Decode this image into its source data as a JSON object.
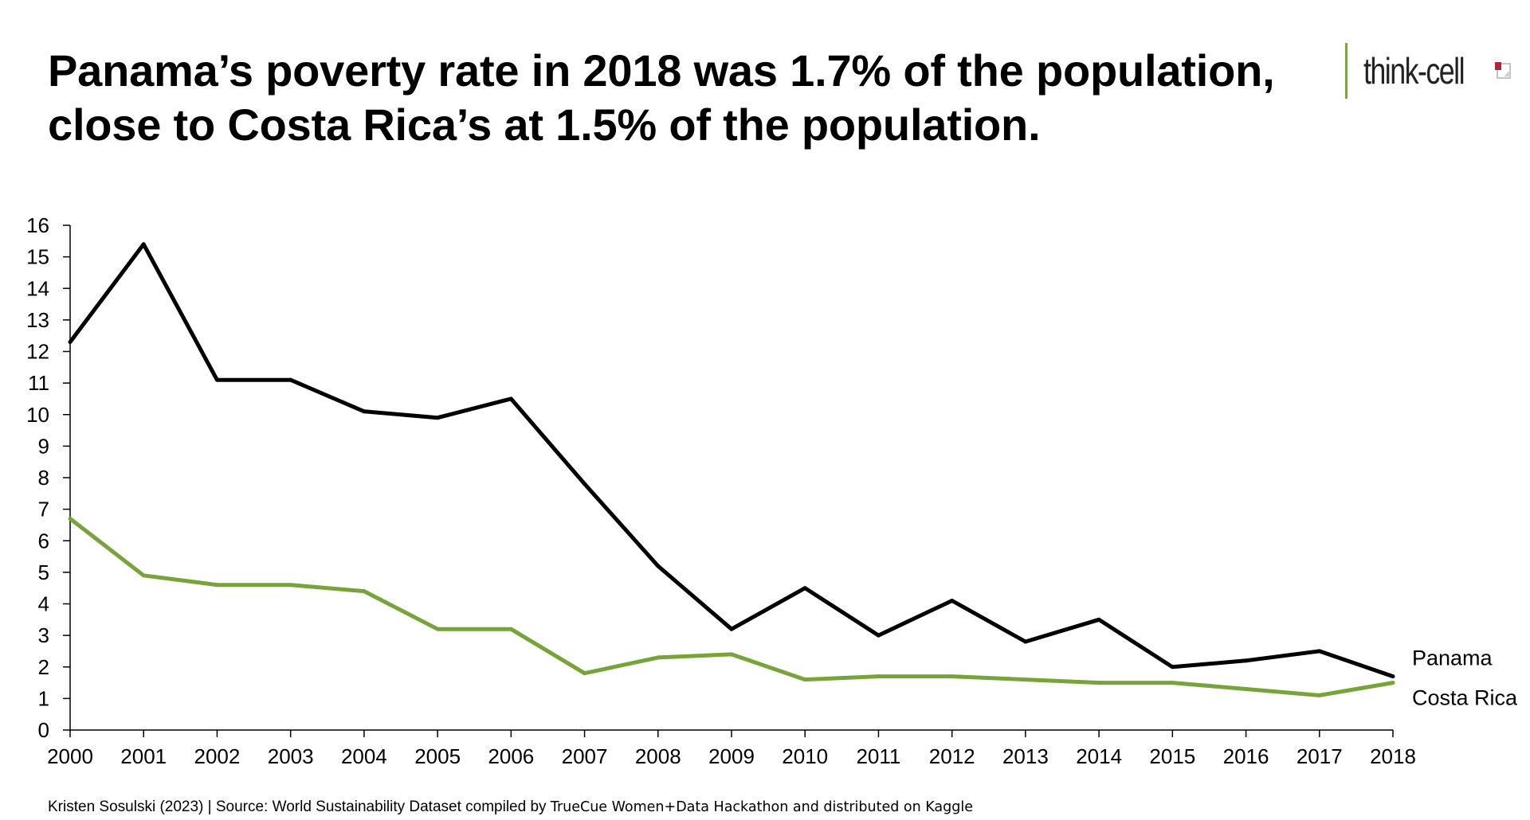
{
  "title": {
    "line1": "Panama’s poverty rate in 2018 was 1.7% of the population,",
    "line2": "close to Costa Rica’s at 1.5% of the population."
  },
  "logo": {
    "text": "think-cell",
    "accent_color": "#7aa53c"
  },
  "footer": {
    "text_a": "Kristen Sosulski (2023) | Source: World Sustainability Dataset compiled by ",
    "text_b": "TrueCue Women+Data Hackathon and distributed on Kaggle"
  },
  "chart_data": {
    "type": "line",
    "title": "",
    "xlabel": "",
    "ylabel": "",
    "x": [
      2000,
      2001,
      2002,
      2003,
      2004,
      2005,
      2006,
      2007,
      2008,
      2009,
      2010,
      2011,
      2012,
      2013,
      2014,
      2015,
      2016,
      2017,
      2018
    ],
    "ylim": [
      0,
      16
    ],
    "yticks": [
      0,
      1,
      2,
      3,
      4,
      5,
      6,
      7,
      8,
      9,
      10,
      11,
      12,
      13,
      14,
      15,
      16
    ],
    "grid": false,
    "legend": "direct labels at right end of lines",
    "series": [
      {
        "name": "Panama",
        "color": "#000000",
        "values": [
          12.3,
          15.4,
          11.1,
          11.1,
          10.1,
          9.9,
          10.5,
          7.8,
          5.2,
          3.2,
          4.5,
          3.0,
          4.1,
          2.8,
          3.5,
          2.0,
          2.2,
          2.5,
          1.7
        ]
      },
      {
        "name": "Costa Rica",
        "color": "#77a43a",
        "values": [
          6.7,
          4.9,
          4.6,
          4.6,
          4.4,
          3.2,
          3.2,
          1.8,
          2.3,
          2.4,
          1.6,
          1.7,
          1.7,
          1.6,
          1.5,
          1.5,
          1.3,
          1.1,
          1.5
        ]
      }
    ]
  }
}
